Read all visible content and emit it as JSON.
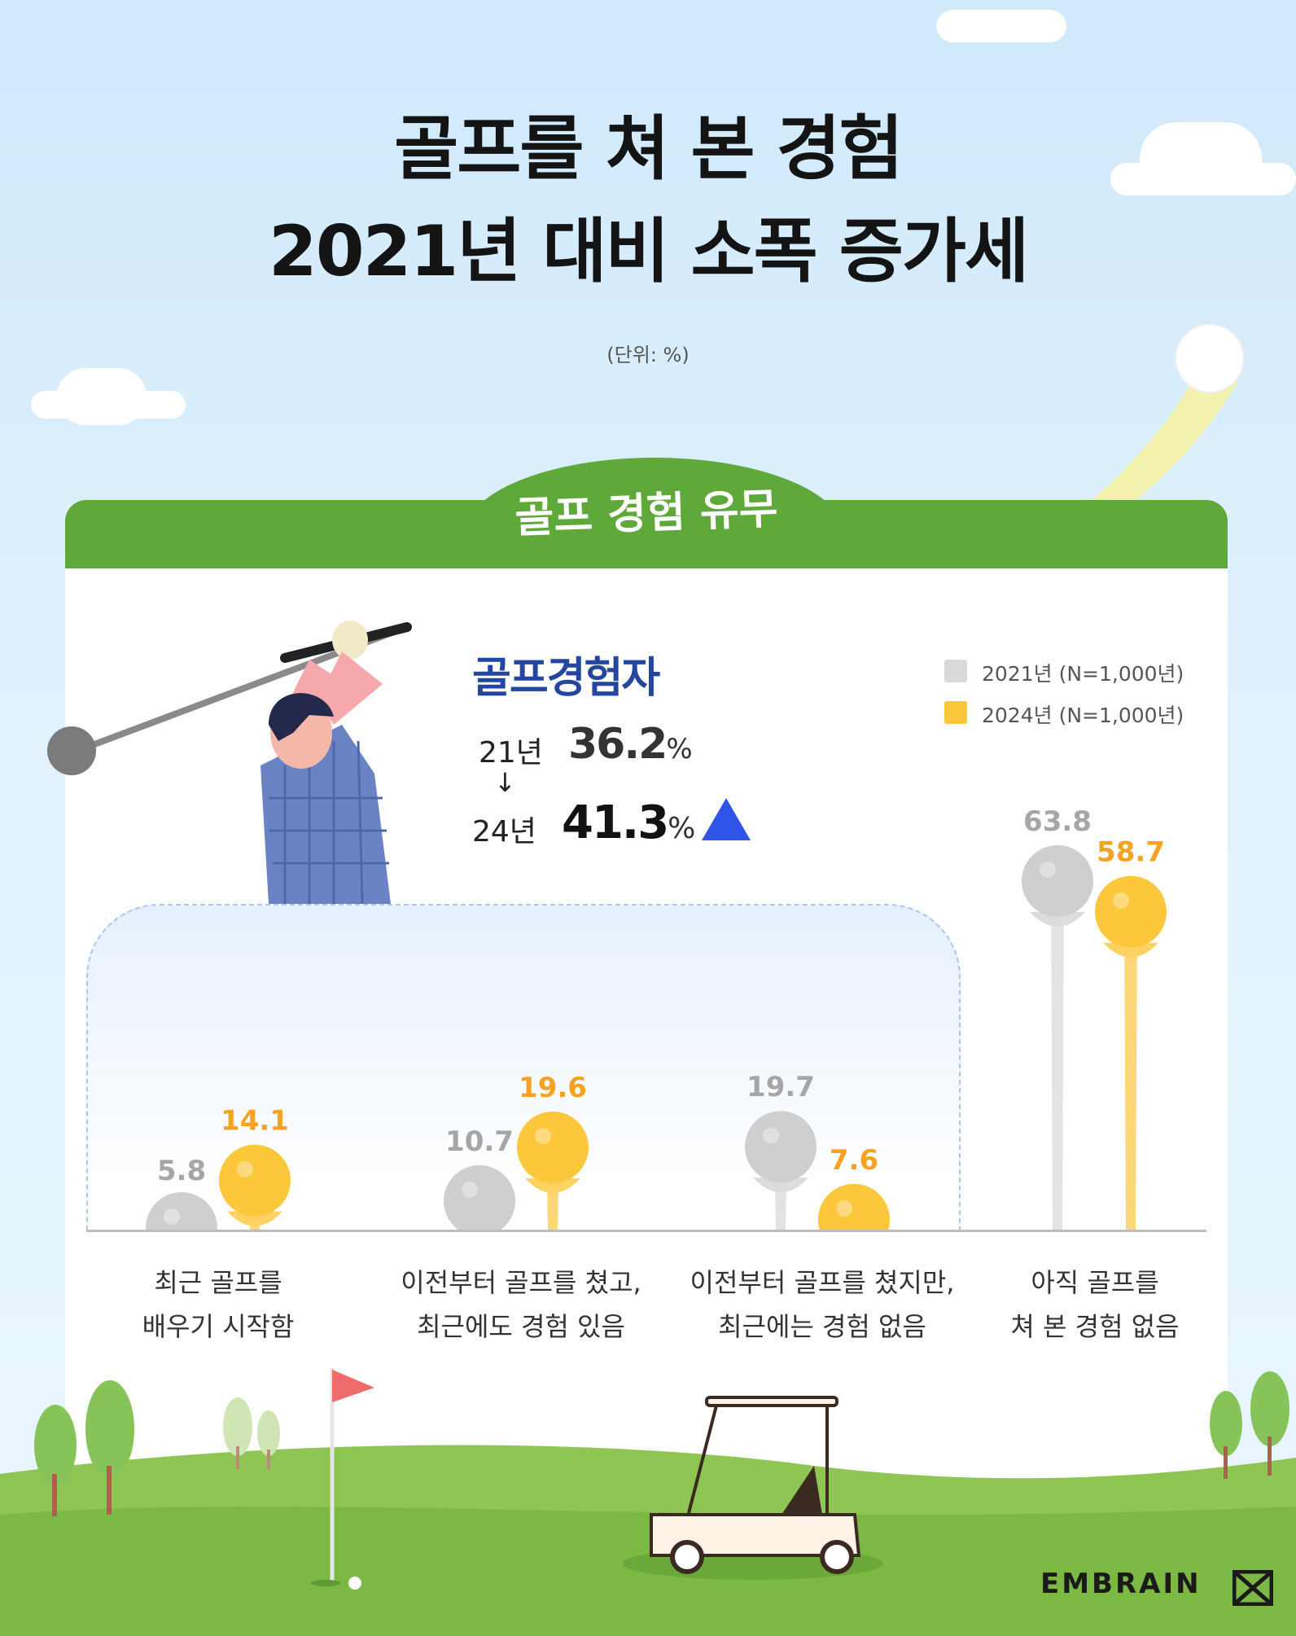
{
  "page": {
    "title_lines": [
      "골프를 쳐 본 경험",
      "2021년 대비 소폭 증가세"
    ],
    "unit": "(단위: %)",
    "section_title": "골프 경험 유무",
    "brand": "EMBRAIN"
  },
  "summary": {
    "title": "골프경험자",
    "rows": [
      {
        "label": "21년",
        "value": "36.2",
        "suffix": "%"
      },
      {
        "label": "24년",
        "value": "41.3",
        "suffix": "%"
      }
    ],
    "arrow": "↓",
    "trend_icon": "up-triangle-icon"
  },
  "legend": [
    {
      "label": "2021년 (N=1,000년)",
      "color": "#d9d9d9"
    },
    {
      "label": "2024년 (N=1,000년)",
      "color": "#fcc73a"
    }
  ],
  "colors": {
    "gray": "#cfcfcf",
    "yellow": "#fcc73a",
    "green": "#5fa83a",
    "navy": "#2346a0",
    "blue": "#2d54e6"
  },
  "chart_data": {
    "type": "bar",
    "categories": [
      [
        "최근 골프를",
        "배우기 시작함"
      ],
      [
        "이전부터 골프를 쳤고,",
        "최근에도 경험 있음"
      ],
      [
        "이전부터 골프를 쳤지만,",
        "최근에는 경험 없음"
      ],
      [
        "아직 골프를",
        "쳐 본 경험 없음"
      ]
    ],
    "series": [
      {
        "name": "2021년 (N=1,000년)",
        "values": [
          5.8,
          10.7,
          19.7,
          63.8
        ]
      },
      {
        "name": "2024년 (N=1,000년)",
        "values": [
          14.1,
          19.6,
          7.6,
          58.7
        ]
      }
    ],
    "unit": "%"
  }
}
